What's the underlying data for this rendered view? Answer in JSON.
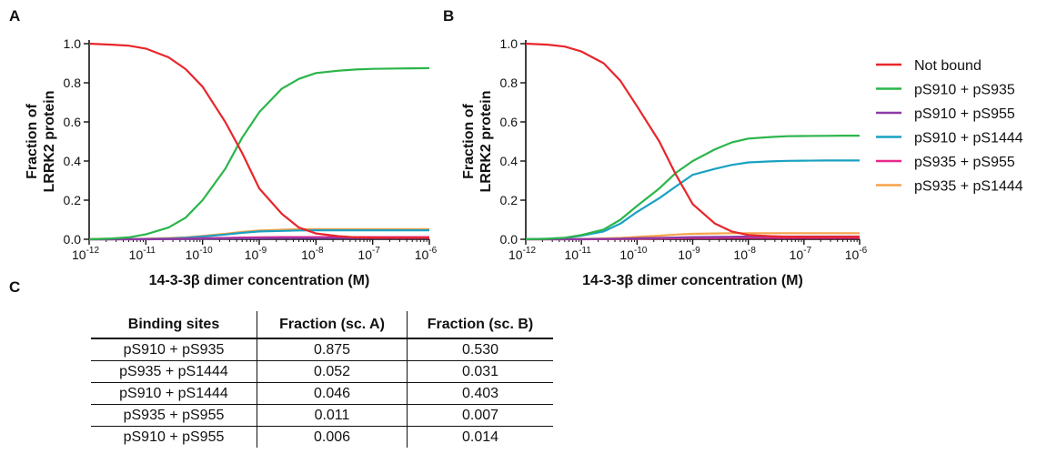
{
  "panels": {
    "a": "A",
    "b": "B",
    "c": "C"
  },
  "chart_data": [
    {
      "type": "line",
      "panel": "A",
      "xlabel": "14-3-3β dimer concentration (M)",
      "ylabel": "Fraction of LRRK2 protein",
      "x_scale": "log",
      "xlim": [
        1e-12,
        1e-06
      ],
      "ylim": [
        0,
        1.0
      ],
      "x_ticks": [
        -12,
        -11,
        -10,
        -9,
        -8,
        -7,
        -6
      ],
      "y_ticks": [
        "0.0",
        "0.2",
        "0.4",
        "0.6",
        "0.8",
        "1.0"
      ],
      "log10_x": [
        -12,
        -11.6,
        -11.3,
        -11,
        -10.6,
        -10.3,
        -10,
        -9.6,
        -9.3,
        -9,
        -8.6,
        -8.3,
        -8,
        -7.6,
        -7.3,
        -7,
        -6.6,
        -6.3,
        -6
      ],
      "series": [
        {
          "name": "Not bound",
          "color": "#e8262b",
          "values": [
            1.0,
            0.995,
            0.99,
            0.975,
            0.93,
            0.87,
            0.78,
            0.6,
            0.44,
            0.26,
            0.13,
            0.06,
            0.03,
            0.016,
            0.01,
            0.009,
            0.008,
            0.008,
            0.008
          ]
        },
        {
          "name": "pS910 + pS935",
          "color": "#2bb54a",
          "values": [
            0.0,
            0.004,
            0.01,
            0.025,
            0.06,
            0.11,
            0.2,
            0.36,
            0.52,
            0.65,
            0.77,
            0.82,
            0.85,
            0.862,
            0.868,
            0.871,
            0.873,
            0.874,
            0.875
          ]
        },
        {
          "name": "pS910 + pS955",
          "color": "#8d3aa6",
          "values": [
            0,
            0,
            0,
            0,
            0.001,
            0.002,
            0.003,
            0.004,
            0.005,
            0.005,
            0.006,
            0.006,
            0.006,
            0.006,
            0.006,
            0.006,
            0.006,
            0.006,
            0.006
          ]
        },
        {
          "name": "pS910 + pS1444",
          "color": "#1aa1c2",
          "values": [
            0,
            0,
            0.001,
            0.002,
            0.004,
            0.008,
            0.014,
            0.024,
            0.033,
            0.04,
            0.043,
            0.045,
            0.046,
            0.046,
            0.046,
            0.046,
            0.046,
            0.046,
            0.046
          ]
        },
        {
          "name": "pS935 + pS955",
          "color": "#e8288a",
          "values": [
            0,
            0,
            0,
            0.001,
            0.002,
            0.003,
            0.005,
            0.007,
            0.009,
            0.01,
            0.011,
            0.011,
            0.011,
            0.011,
            0.011,
            0.011,
            0.011,
            0.011,
            0.011
          ]
        },
        {
          "name": "pS935 + pS1444",
          "color": "#f5a24b",
          "values": [
            0,
            0,
            0.001,
            0.003,
            0.006,
            0.01,
            0.017,
            0.028,
            0.038,
            0.045,
            0.049,
            0.051,
            0.052,
            0.052,
            0.052,
            0.052,
            0.052,
            0.052,
            0.052
          ]
        }
      ]
    },
    {
      "type": "line",
      "panel": "B",
      "xlabel": "14-3-3β dimer concentration (M)",
      "ylabel": "Fraction of LRRK2 protein",
      "x_scale": "log",
      "xlim": [
        1e-12,
        1e-06
      ],
      "ylim": [
        0,
        1.0
      ],
      "x_ticks": [
        -12,
        -11,
        -10,
        -9,
        -8,
        -7,
        -6
      ],
      "y_ticks": [
        "0.0",
        "0.2",
        "0.4",
        "0.6",
        "0.8",
        "1.0"
      ],
      "log10_x": [
        -12,
        -11.6,
        -11.3,
        -11,
        -10.6,
        -10.3,
        -10,
        -9.6,
        -9.3,
        -9,
        -8.6,
        -8.3,
        -8,
        -7.6,
        -7.3,
        -7,
        -6.6,
        -6.3,
        -6
      ],
      "series": [
        {
          "name": "Not bound",
          "color": "#e8262b",
          "values": [
            1.0,
            0.995,
            0.985,
            0.96,
            0.9,
            0.81,
            0.68,
            0.5,
            0.33,
            0.18,
            0.08,
            0.04,
            0.022,
            0.016,
            0.013,
            0.012,
            0.012,
            0.012,
            0.012
          ]
        },
        {
          "name": "pS910 + pS935",
          "color": "#2bb54a",
          "values": [
            0,
            0.003,
            0.008,
            0.022,
            0.05,
            0.1,
            0.17,
            0.26,
            0.34,
            0.4,
            0.46,
            0.495,
            0.515,
            0.523,
            0.527,
            0.528,
            0.529,
            0.53,
            0.53
          ]
        },
        {
          "name": "pS910 + pS955",
          "color": "#8d3aa6",
          "values": [
            0,
            0,
            0,
            0.001,
            0.002,
            0.003,
            0.005,
            0.007,
            0.009,
            0.011,
            0.012,
            0.013,
            0.014,
            0.014,
            0.014,
            0.014,
            0.014,
            0.014,
            0.014
          ]
        },
        {
          "name": "pS910 + pS1444",
          "color": "#1aa1c2",
          "values": [
            0,
            0.003,
            0.007,
            0.018,
            0.04,
            0.08,
            0.14,
            0.21,
            0.27,
            0.33,
            0.36,
            0.38,
            0.393,
            0.398,
            0.401,
            0.402,
            0.403,
            0.403,
            0.403
          ]
        },
        {
          "name": "pS935 + pS955",
          "color": "#e8288a",
          "values": [
            0,
            0,
            0,
            0,
            0.001,
            0.002,
            0.003,
            0.004,
            0.005,
            0.006,
            0.006,
            0.007,
            0.007,
            0.007,
            0.007,
            0.007,
            0.007,
            0.007,
            0.007
          ]
        },
        {
          "name": "pS935 + pS1444",
          "color": "#f5a24b",
          "values": [
            0,
            0,
            0.001,
            0.002,
            0.004,
            0.007,
            0.012,
            0.018,
            0.024,
            0.028,
            0.03,
            0.031,
            0.031,
            0.031,
            0.031,
            0.031,
            0.031,
            0.031,
            0.031
          ]
        }
      ]
    },
    {
      "type": "table",
      "panel": "C",
      "headers": [
        "Binding sites",
        "Fraction (sc. A)",
        "Fraction (sc. B)"
      ],
      "rows": [
        [
          "pS910 + pS935",
          "0.875",
          "0.530"
        ],
        [
          "pS935 + pS1444",
          "0.052",
          "0.031"
        ],
        [
          "pS910 + pS1444",
          "0.046",
          "0.403"
        ],
        [
          "pS935 + pS955",
          "0.011",
          "0.007"
        ],
        [
          "pS910 + pS955",
          "0.006",
          "0.014"
        ]
      ]
    }
  ],
  "legend": {
    "placement": "right",
    "entries": [
      {
        "label": "Not bound",
        "color": "#e8262b"
      },
      {
        "label": "pS910 + pS935",
        "color": "#2bb54a"
      },
      {
        "label": "pS910 + pS955",
        "color": "#8d3aa6"
      },
      {
        "label": "pS910 + pS1444",
        "color": "#1aa1c2"
      },
      {
        "label": "pS935 + pS955",
        "color": "#e8288a"
      },
      {
        "label": "pS935 + pS1444",
        "color": "#f5a24b"
      }
    ]
  }
}
